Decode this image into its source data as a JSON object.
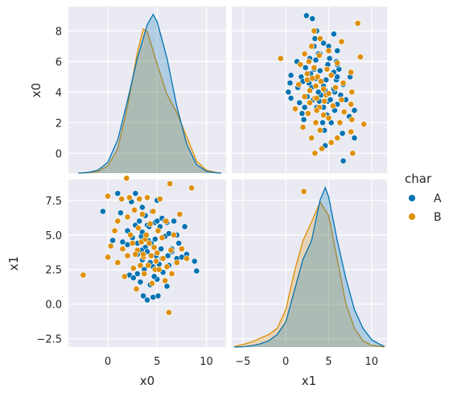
{
  "colors": {
    "panel_bg": "#eaeaf2",
    "grid": "#ffffff",
    "series_A": "#0173b2",
    "series_B": "#de8f05"
  },
  "chart_data": {
    "type": "scatter",
    "subtype": "pairplot",
    "variables": [
      "x0",
      "x1"
    ],
    "grid": true,
    "legend": {
      "title": "char",
      "placement": "right",
      "entries": [
        "A",
        "B"
      ]
    },
    "axes": {
      "x0": {
        "label": "x0",
        "lim": [
          -4,
          12
        ],
        "ticks": [
          0,
          5,
          10
        ],
        "tick_labels": [
          "0",
          "5",
          "10"
        ]
      },
      "x0_y": {
        "label": "x0",
        "lim": [
          -1.3,
          9.6
        ],
        "ticks": [
          0,
          2,
          4,
          6,
          8
        ],
        "tick_labels": [
          "0",
          "2",
          "4",
          "6",
          "8"
        ]
      },
      "x1": {
        "label": "x1",
        "lim": [
          -6.3,
          11.8
        ],
        "ticks": [
          -5,
          0,
          5,
          10
        ],
        "tick_labels": [
          "−5",
          "0",
          "5",
          "10"
        ]
      },
      "x1_y": {
        "label": "x1",
        "lim": [
          -3.1,
          9.0
        ],
        "ticks": [
          -2.5,
          0.0,
          2.5,
          5.0,
          7.5
        ],
        "tick_labels": [
          "−2.5",
          "0.0",
          "2.5",
          "5.0",
          "7.5"
        ]
      }
    },
    "kde": {
      "x0": {
        "A": {
          "x": [
            -3,
            -2,
            -1,
            0,
            1,
            2,
            3,
            4,
            4.6,
            5,
            6,
            7,
            8,
            9,
            10,
            11,
            11.5
          ],
          "y": [
            0.0,
            0.001,
            0.005,
            0.018,
            0.055,
            0.12,
            0.19,
            0.245,
            0.262,
            0.25,
            0.19,
            0.11,
            0.048,
            0.014,
            0.003,
            0.0005,
            0.0
          ]
        },
        "B": {
          "x": [
            -3,
            -2,
            -1,
            0,
            1,
            2,
            3,
            3.6,
            4,
            5,
            6,
            7,
            8,
            9,
            10,
            11,
            11.5
          ],
          "y": [
            0.0,
            0.0005,
            0.003,
            0.012,
            0.04,
            0.11,
            0.2,
            0.238,
            0.234,
            0.18,
            0.13,
            0.1,
            0.06,
            0.02,
            0.005,
            0.001,
            0.0
          ]
        }
      },
      "x1": {
        "A": {
          "x": [
            -6,
            -5,
            -4,
            -3,
            -2,
            -1,
            0,
            1,
            2,
            3,
            4,
            4.6,
            5,
            6,
            7,
            8,
            9,
            10,
            11,
            11.5
          ],
          "y": [
            0.0,
            0.0005,
            0.002,
            0.005,
            0.01,
            0.02,
            0.04,
            0.09,
            0.14,
            0.17,
            0.235,
            0.255,
            0.24,
            0.17,
            0.11,
            0.06,
            0.03,
            0.012,
            0.004,
            0.001
          ]
        },
        "B": {
          "x": [
            -6,
            -5,
            -4,
            -3,
            -2,
            -1,
            0,
            1,
            2,
            3,
            4,
            5,
            6,
            7,
            8,
            9,
            10,
            11,
            11.5
          ],
          "y": [
            0.001,
            0.004,
            0.008,
            0.014,
            0.02,
            0.03,
            0.06,
            0.12,
            0.17,
            0.2,
            0.232,
            0.21,
            0.14,
            0.07,
            0.03,
            0.01,
            0.003,
            0.001,
            0.0
          ]
        }
      }
    },
    "points": {
      "A": [
        [
          -0.5,
          6.7
        ],
        [
          0.5,
          4.6
        ],
        [
          1,
          8.0
        ],
        [
          1.3,
          6.6
        ],
        [
          1.5,
          4.5
        ],
        [
          2,
          5.3
        ],
        [
          2,
          4.3
        ],
        [
          2.2,
          2.1
        ],
        [
          2.4,
          7.4
        ],
        [
          2.5,
          4.8
        ],
        [
          2.6,
          1.9
        ],
        [
          2.8,
          8.0
        ],
        [
          2.8,
          5.7
        ],
        [
          3,
          4.4
        ],
        [
          3,
          3.6
        ],
        [
          3,
          2.2
        ],
        [
          3.2,
          6.0
        ],
        [
          3.3,
          1.6
        ],
        [
          3.4,
          4.9
        ],
        [
          3.5,
          7.0
        ],
        [
          3.5,
          5.2
        ],
        [
          3.5,
          3.2
        ],
        [
          3.6,
          0.6
        ],
        [
          3.7,
          2.5
        ],
        [
          3.8,
          4.1
        ],
        [
          3.8,
          6.4
        ],
        [
          4,
          5.7
        ],
        [
          4,
          3.8
        ],
        [
          4,
          0.3
        ],
        [
          4.2,
          5.6
        ],
        [
          4.3,
          1.4
        ],
        [
          4.3,
          3.0
        ],
        [
          4.4,
          4.4
        ],
        [
          4.5,
          6.7
        ],
        [
          4.6,
          2.7
        ],
        [
          4.6,
          0.5
        ],
        [
          4.8,
          5.9
        ],
        [
          4.8,
          4.7
        ],
        [
          4.9,
          3.5
        ],
        [
          5,
          7.5
        ],
        [
          5,
          1.8
        ],
        [
          5,
          6.0
        ],
        [
          5.1,
          0.6
        ],
        [
          5.2,
          2.9
        ],
        [
          5.3,
          5.6
        ],
        [
          5.4,
          4.0
        ],
        [
          5.5,
          6.2
        ],
        [
          5.5,
          3.3
        ],
        [
          5.6,
          2.3
        ],
        [
          5.8,
          6.0
        ],
        [
          5.8,
          4.9
        ],
        [
          6,
          5.9
        ],
        [
          6,
          1.3
        ],
        [
          6.1,
          3.5
        ],
        [
          6.2,
          5.1
        ],
        [
          6.2,
          2.8
        ],
        [
          6.5,
          4.0
        ],
        [
          6.5,
          3.8
        ],
        [
          6.7,
          6.0
        ],
        [
          7,
          5.0
        ],
        [
          7,
          3.3
        ],
        [
          7.2,
          4.4
        ],
        [
          7.5,
          3.4
        ],
        [
          7.8,
          5.6
        ],
        [
          8,
          3.6
        ],
        [
          8.8,
          3.1
        ],
        [
          9,
          2.4
        ],
        [
          3.4,
          3.9
        ],
        [
          4.1,
          4.6
        ],
        [
          4.7,
          2.0
        ]
      ],
      "B": [
        [
          -2.5,
          2.1
        ],
        [
          0,
          7.8
        ],
        [
          0,
          3.4
        ],
        [
          0.3,
          4.2
        ],
        [
          0.7,
          5.3
        ],
        [
          1,
          3.0
        ],
        [
          1,
          6.0
        ],
        [
          1.4,
          7.6
        ],
        [
          1.5,
          4.0
        ],
        [
          1.7,
          2.0
        ],
        [
          1.9,
          9.1
        ],
        [
          2,
          6.3
        ],
        [
          2,
          3.5
        ],
        [
          2.2,
          7.7
        ],
        [
          2.3,
          5.0
        ],
        [
          2.5,
          4.4
        ],
        [
          2.6,
          2.6
        ],
        [
          2.7,
          6.8
        ],
        [
          2.9,
          1.1
        ],
        [
          3,
          3.9
        ],
        [
          3.1,
          5.5
        ],
        [
          3.2,
          7.6
        ],
        [
          3.3,
          2.8
        ],
        [
          3.4,
          4.5
        ],
        [
          3.5,
          6.5
        ],
        [
          3.6,
          3.4
        ],
        [
          3.7,
          2.2
        ],
        [
          3.8,
          4.7
        ],
        [
          3.9,
          5.0
        ],
        [
          4,
          7.7
        ],
        [
          4.1,
          2.8
        ],
        [
          4.2,
          4.4
        ],
        [
          4.3,
          5.8
        ],
        [
          4.4,
          3.5
        ],
        [
          4.5,
          1.5
        ],
        [
          4.6,
          6.7
        ],
        [
          4.7,
          4.1
        ],
        [
          4.8,
          2.5
        ],
        [
          5,
          3.7
        ],
        [
          5.1,
          5.3
        ],
        [
          5.2,
          2.5
        ],
        [
          5.3,
          7.6
        ],
        [
          5.5,
          4.8
        ],
        [
          5.6,
          3.3
        ],
        [
          5.8,
          1.7
        ],
        [
          5.9,
          6.0
        ],
        [
          6,
          2.7
        ],
        [
          6.2,
          -0.6
        ],
        [
          6.3,
          8.7
        ],
        [
          6.4,
          3.9
        ],
        [
          6.5,
          2.2
        ],
        [
          6.7,
          5.0
        ],
        [
          7,
          3.0
        ],
        [
          7.3,
          6.5
        ],
        [
          7.5,
          4.0
        ],
        [
          8,
          3.3
        ],
        [
          8.5,
          8.4
        ],
        [
          3.6,
          3.6
        ],
        [
          4.9,
          3.1
        ],
        [
          2.8,
          3.6
        ]
      ]
    }
  }
}
